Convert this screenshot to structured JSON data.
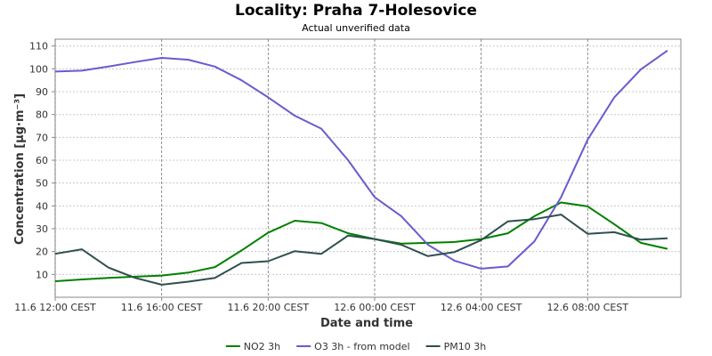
{
  "chart_data": {
    "type": "line",
    "title": "Locality: Praha 7-Holesovice",
    "subtitle": "Actual unverified data",
    "xlabel": "Date and time",
    "ylabel": "Concentration [µg·m⁻³]",
    "ylim": [
      0,
      113
    ],
    "yticks": [
      10,
      20,
      30,
      40,
      50,
      60,
      70,
      80,
      90,
      100,
      110
    ],
    "xlim": [
      12.0,
      35.5
    ],
    "xticks": [
      {
        "value": 12,
        "label": "11.6 12:00 CEST"
      },
      {
        "value": 16,
        "label": "11.6 16:00 CEST"
      },
      {
        "value": 20,
        "label": "11.6 20:00 CEST"
      },
      {
        "value": 24,
        "label": "12.6 00:00 CEST"
      },
      {
        "value": 28,
        "label": "12.6 04:00 CEST"
      },
      {
        "value": 32,
        "label": "12.6 08:00 CEST"
      }
    ],
    "grid": true,
    "legend": "bottom",
    "x": [
      12,
      13,
      14,
      15,
      16,
      17,
      18,
      19,
      20,
      21,
      22,
      23,
      24,
      25,
      26,
      27,
      28,
      29,
      30,
      31,
      32,
      33,
      34,
      35
    ],
    "series": [
      {
        "name": "NO2 3h",
        "color": "#008000",
        "values": [
          7,
          7.8,
          8.5,
          9,
          9.5,
          10.8,
          13.2,
          20.5,
          28.3,
          33.5,
          32.5,
          28,
          25.5,
          23.5,
          23.8,
          24.2,
          25.5,
          28,
          35.5,
          41.5,
          39.8,
          32,
          23.8,
          21.2
        ]
      },
      {
        "name": "O3 3h - from model",
        "color": "#6a5acd",
        "values": [
          98.8,
          99.2,
          101,
          103,
          104.8,
          104,
          101,
          95,
          87.5,
          79.5,
          73.8,
          60,
          43.8,
          35.5,
          23,
          16,
          12.5,
          13.5,
          24.5,
          43.8,
          69,
          87.5,
          99.8,
          108
        ]
      },
      {
        "name": "PM10 3h",
        "color": "#2f4f4f",
        "values": [
          19,
          21,
          13,
          8.5,
          5.5,
          6.8,
          8.5,
          15,
          15.8,
          20.2,
          19,
          27,
          25.5,
          23,
          18,
          19.8,
          25,
          33.2,
          34.2,
          36.2,
          27.8,
          28.5,
          25.2,
          25.8
        ]
      }
    ]
  }
}
